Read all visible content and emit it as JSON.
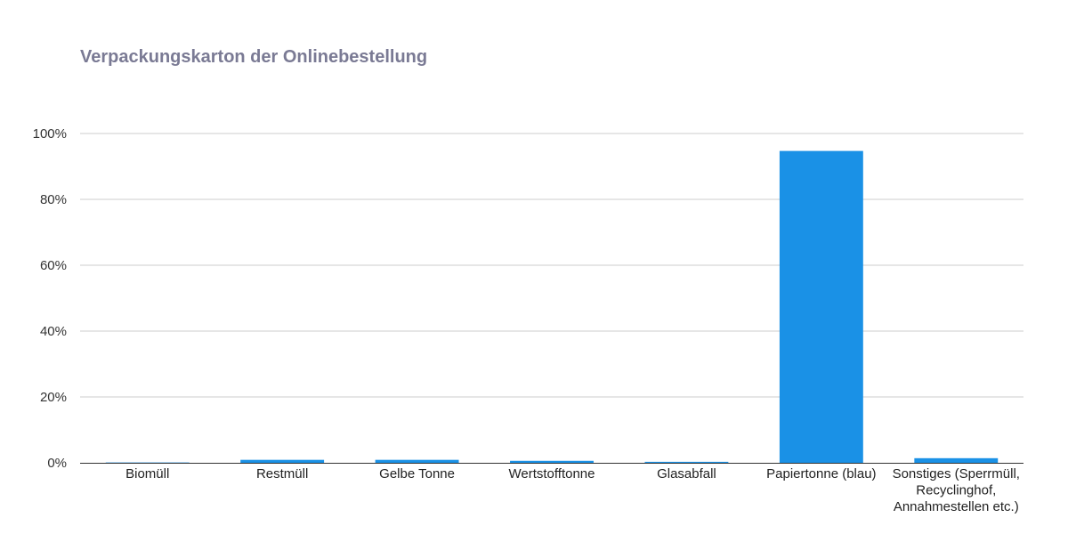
{
  "chart_data": {
    "type": "bar",
    "title": "Verpackungskarton der Onlinebestellung",
    "xlabel": "",
    "ylabel": "",
    "categories": [
      "Biomüll",
      "Restmüll",
      "Gelbe Tonne",
      "Wertstofftonne",
      "Glasabfall",
      "Papiertonne (blau)",
      "Sonstiges (Sperrmüll, Recyclinghof, Annahmestellen etc.)"
    ],
    "values": [
      0.1,
      0.9,
      0.9,
      0.6,
      0.3,
      94.7,
      1.4
    ],
    "ylim": [
      0,
      100
    ],
    "yticks": [
      "0%",
      "20%",
      "40%",
      "60%",
      "80%",
      "100%"
    ],
    "grid": true,
    "bar_color": "#1a91e6"
  }
}
